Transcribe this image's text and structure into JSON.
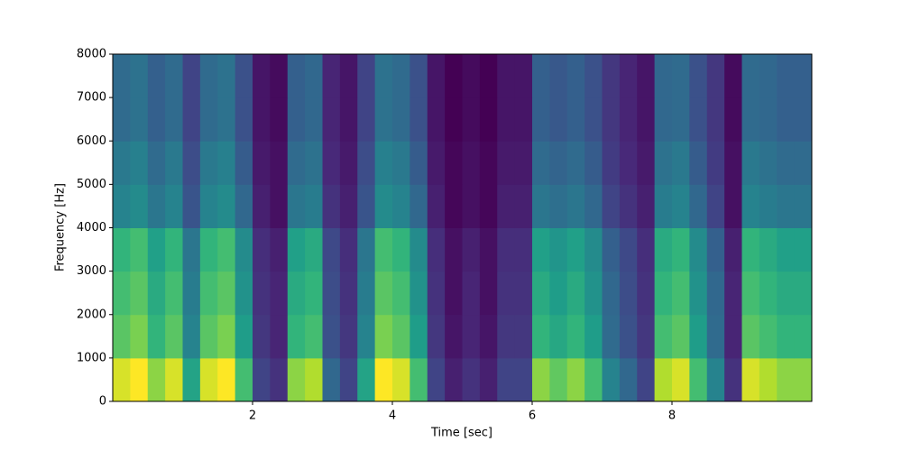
{
  "chart_data": {
    "type": "heatmap",
    "colormap": "viridis",
    "xlabel": "Time [sec]",
    "ylabel": "Frequency [Hz]",
    "xlim": [
      0,
      10
    ],
    "ylim": [
      0,
      8000
    ],
    "xticks": [
      2,
      4,
      6,
      8
    ],
    "yticks": [
      0,
      1000,
      2000,
      3000,
      4000,
      5000,
      6000,
      7000,
      8000
    ],
    "x": [
      0.125,
      0.375,
      0.625,
      0.875,
      1.125,
      1.375,
      1.625,
      1.875,
      2.125,
      2.375,
      2.625,
      2.875,
      3.125,
      3.375,
      3.625,
      3.875,
      4.125,
      4.375,
      4.625,
      4.875,
      5.125,
      5.375,
      5.625,
      5.875,
      6.125,
      6.375,
      6.625,
      6.875,
      7.125,
      7.375,
      7.625,
      7.875,
      8.125,
      8.375,
      8.625,
      8.875,
      9.125,
      9.375,
      9.625,
      9.875
    ],
    "y": [
      500,
      1500,
      2500,
      3500,
      4500,
      5500,
      6500,
      7500
    ],
    "values": [
      [
        0.78,
        0.82,
        0.7,
        0.78,
        0.53,
        0.78,
        0.82,
        0.61,
        0.27,
        0.23,
        0.7,
        0.74,
        0.36,
        0.27,
        0.53,
        0.82,
        0.78,
        0.61,
        0.27,
        0.19,
        0.23,
        0.19,
        0.27,
        0.27,
        0.7,
        0.65,
        0.7,
        0.61,
        0.44,
        0.36,
        0.27,
        0.74,
        0.78,
        0.61,
        0.44,
        0.23,
        0.78,
        0.74,
        0.7,
        0.7
      ],
      [
        0.64,
        0.68,
        0.58,
        0.64,
        0.44,
        0.64,
        0.68,
        0.51,
        0.24,
        0.2,
        0.58,
        0.61,
        0.3,
        0.24,
        0.44,
        0.68,
        0.64,
        0.51,
        0.24,
        0.17,
        0.2,
        0.17,
        0.24,
        0.24,
        0.58,
        0.54,
        0.58,
        0.51,
        0.37,
        0.3,
        0.24,
        0.61,
        0.64,
        0.51,
        0.37,
        0.2,
        0.64,
        0.61,
        0.58,
        0.58
      ],
      [
        0.61,
        0.64,
        0.55,
        0.61,
        0.42,
        0.61,
        0.64,
        0.48,
        0.23,
        0.2,
        0.55,
        0.58,
        0.29,
        0.23,
        0.42,
        0.64,
        0.61,
        0.48,
        0.23,
        0.16,
        0.2,
        0.16,
        0.23,
        0.23,
        0.55,
        0.51,
        0.55,
        0.48,
        0.36,
        0.29,
        0.23,
        0.58,
        0.61,
        0.48,
        0.36,
        0.2,
        0.61,
        0.58,
        0.55,
        0.55
      ],
      [
        0.58,
        0.61,
        0.52,
        0.58,
        0.4,
        0.58,
        0.61,
        0.46,
        0.22,
        0.19,
        0.52,
        0.55,
        0.28,
        0.22,
        0.4,
        0.61,
        0.58,
        0.46,
        0.22,
        0.16,
        0.19,
        0.16,
        0.22,
        0.22,
        0.52,
        0.49,
        0.52,
        0.46,
        0.34,
        0.28,
        0.22,
        0.55,
        0.58,
        0.46,
        0.34,
        0.19,
        0.58,
        0.55,
        0.52,
        0.52
      ],
      [
        0.44,
        0.46,
        0.4,
        0.44,
        0.31,
        0.44,
        0.46,
        0.36,
        0.19,
        0.16,
        0.4,
        0.42,
        0.23,
        0.19,
        0.31,
        0.46,
        0.44,
        0.36,
        0.19,
        0.14,
        0.16,
        0.14,
        0.19,
        0.19,
        0.4,
        0.38,
        0.4,
        0.36,
        0.27,
        0.23,
        0.19,
        0.42,
        0.44,
        0.36,
        0.27,
        0.16,
        0.44,
        0.42,
        0.4,
        0.4
      ],
      [
        0.41,
        0.43,
        0.37,
        0.41,
        0.29,
        0.41,
        0.43,
        0.33,
        0.18,
        0.16,
        0.37,
        0.39,
        0.21,
        0.18,
        0.29,
        0.43,
        0.41,
        0.33,
        0.18,
        0.14,
        0.16,
        0.14,
        0.18,
        0.18,
        0.37,
        0.35,
        0.37,
        0.33,
        0.25,
        0.21,
        0.18,
        0.39,
        0.41,
        0.33,
        0.25,
        0.16,
        0.41,
        0.39,
        0.37,
        0.37
      ],
      [
        0.37,
        0.39,
        0.34,
        0.37,
        0.27,
        0.37,
        0.39,
        0.3,
        0.17,
        0.15,
        0.34,
        0.36,
        0.2,
        0.17,
        0.27,
        0.39,
        0.37,
        0.3,
        0.17,
        0.13,
        0.15,
        0.13,
        0.17,
        0.17,
        0.34,
        0.32,
        0.34,
        0.3,
        0.24,
        0.2,
        0.17,
        0.36,
        0.37,
        0.3,
        0.24,
        0.15,
        0.37,
        0.36,
        0.34,
        0.34
      ],
      [
        0.37,
        0.39,
        0.34,
        0.37,
        0.27,
        0.37,
        0.39,
        0.3,
        0.17,
        0.15,
        0.34,
        0.36,
        0.2,
        0.17,
        0.27,
        0.39,
        0.37,
        0.3,
        0.17,
        0.13,
        0.15,
        0.13,
        0.17,
        0.17,
        0.34,
        0.32,
        0.34,
        0.3,
        0.24,
        0.2,
        0.17,
        0.36,
        0.37,
        0.3,
        0.24,
        0.15,
        0.37,
        0.36,
        0.34,
        0.34
      ]
    ]
  }
}
